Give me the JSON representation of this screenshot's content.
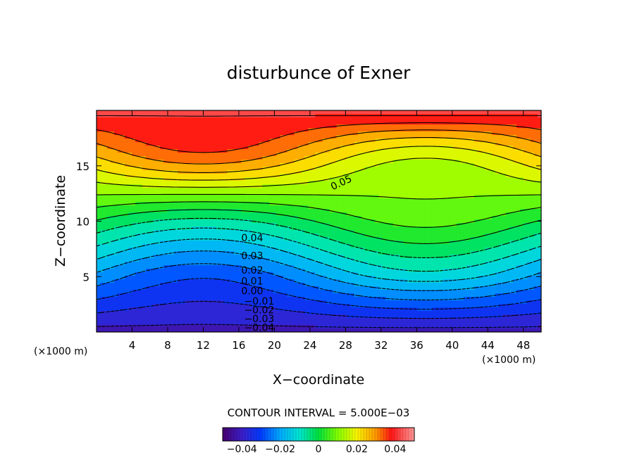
{
  "chart_data": {
    "type": "contour",
    "title": "disturbunce of Exner",
    "xlabel": "X−coordinate",
    "ylabel": "Z−coordinate",
    "x_unit": "(×1000 m)",
    "z_unit": "(×1000 m)",
    "xlim": [
      0,
      50
    ],
    "ylim": [
      0,
      20
    ],
    "x_ticks": [
      4,
      8,
      12,
      16,
      20,
      24,
      28,
      32,
      36,
      40,
      44,
      48
    ],
    "y_ticks": [
      5,
      10,
      15
    ],
    "contour_interval_text": "CONTOUR INTERVAL = 5.000E−03",
    "contour_interval": 0.005,
    "value_range": [
      -0.045,
      0.05
    ],
    "negative_contours_dashed": true,
    "contour_labels": [
      {
        "text": "0.05",
        "x": 27.5,
        "z": 13.5
      },
      {
        "text": "0.04",
        "x": 17.5,
        "z": 8.5
      },
      {
        "text": "0.03",
        "x": 17.5,
        "z": 6.9
      },
      {
        "text": "0.02",
        "x": 17.5,
        "z": 5.6
      },
      {
        "text": "0.01",
        "x": 17.5,
        "z": 4.6
      },
      {
        "text": "0.00",
        "x": 17.5,
        "z": 3.7
      },
      {
        "text": "−0.01",
        "x": 18.3,
        "z": 2.8
      },
      {
        "text": "−0.02",
        "x": 18.3,
        "z": 2.0
      },
      {
        "text": "−0.03",
        "x": 18.3,
        "z": 1.2
      },
      {
        "text": "−0.04",
        "x": 18.3,
        "z": 0.4
      }
    ],
    "colorbar": {
      "range": [
        -0.05,
        0.05
      ],
      "ticks": [
        -0.04,
        -0.02,
        0,
        0.02,
        0.04
      ],
      "tick_labels": [
        "−0.04",
        "−0.02",
        "0",
        "0.02",
        "0.04"
      ]
    },
    "colors": [
      "#5a1a8a",
      "#2020c0",
      "#0080ff",
      "#00e0e0",
      "#00e040",
      "#80ff00",
      "#ffff00",
      "#ffa000",
      "#ff2020",
      "#ff6060",
      "#ff9090"
    ]
  }
}
